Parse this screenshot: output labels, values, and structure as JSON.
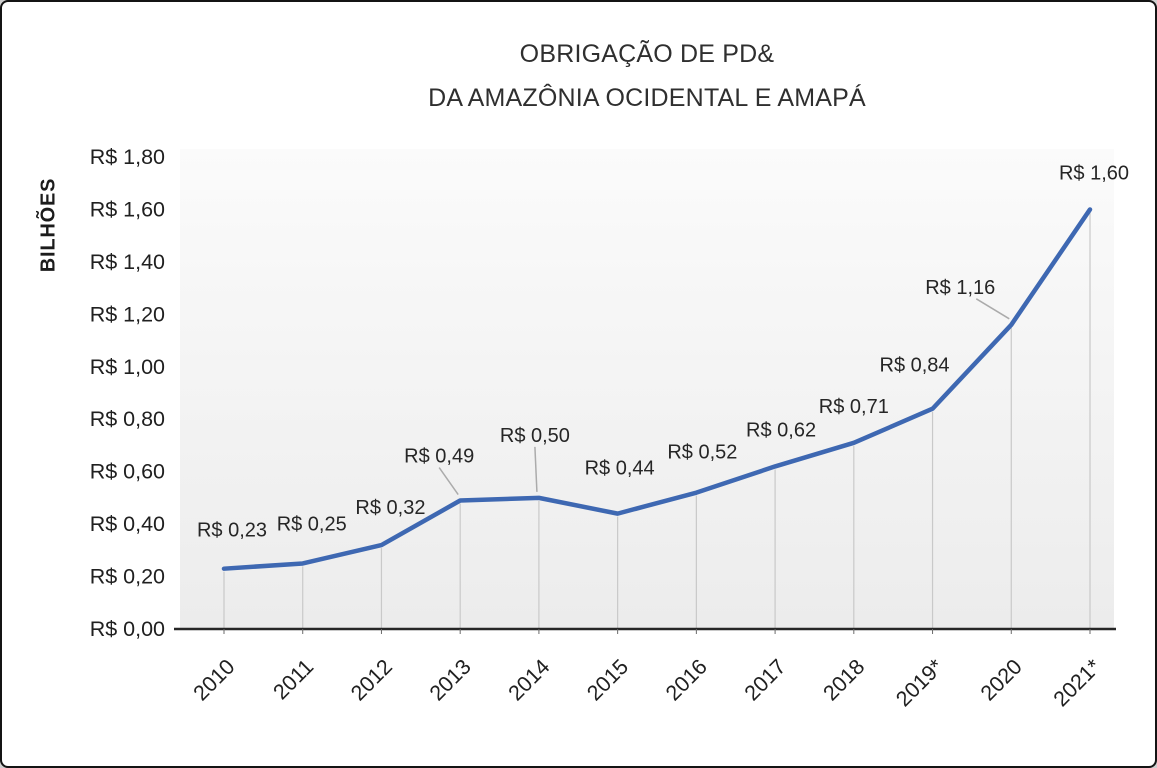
{
  "title": {
    "line1": "OBRIGAÇÃO DE PD&",
    "line2": "DA AMAZÔNIA OCIDENTAL E AMAPÁ"
  },
  "chart_data": {
    "type": "line",
    "title": "OBRIGAÇÃO DE PD& DA AMAZÔNIA OCIDENTAL E AMAPÁ",
    "categories": [
      "2010",
      "2011",
      "2012",
      "2013",
      "2014",
      "2015",
      "2016",
      "2017",
      "2018",
      "2019*",
      "2020",
      "2021*"
    ],
    "values": [
      0.23,
      0.25,
      0.32,
      0.49,
      0.5,
      0.44,
      0.52,
      0.62,
      0.71,
      0.84,
      1.16,
      1.6
    ],
    "point_labels": [
      "R$ 0,23",
      "R$ 0,25",
      "R$ 0,32",
      "R$ 0,49",
      "R$ 0,50",
      "R$ 0,44",
      "R$ 0,52",
      "R$ 0,62",
      "R$ 0,71",
      "R$ 0,84",
      "R$ 1,16",
      "R$ 1,60"
    ],
    "xlabel": "",
    "ylabel": "BILHÕES",
    "ylim": [
      0,
      1.8
    ],
    "y_tick_step": 0.2,
    "y_ticks": [
      "R$ 0,00",
      "R$ 0,20",
      "R$ 0,40",
      "R$ 0,60",
      "R$ 0,80",
      "R$ 1,00",
      "R$ 1,20",
      "R$ 1,40",
      "R$ 1,60",
      "R$ 1,80"
    ],
    "grid": "vertical-droplines",
    "legend": "none",
    "line_color": "#3e68b2",
    "dropline_color": "#c9c9c9",
    "leader_color": "#ababab",
    "axis_color": "#262626",
    "text_color": "#202020"
  }
}
